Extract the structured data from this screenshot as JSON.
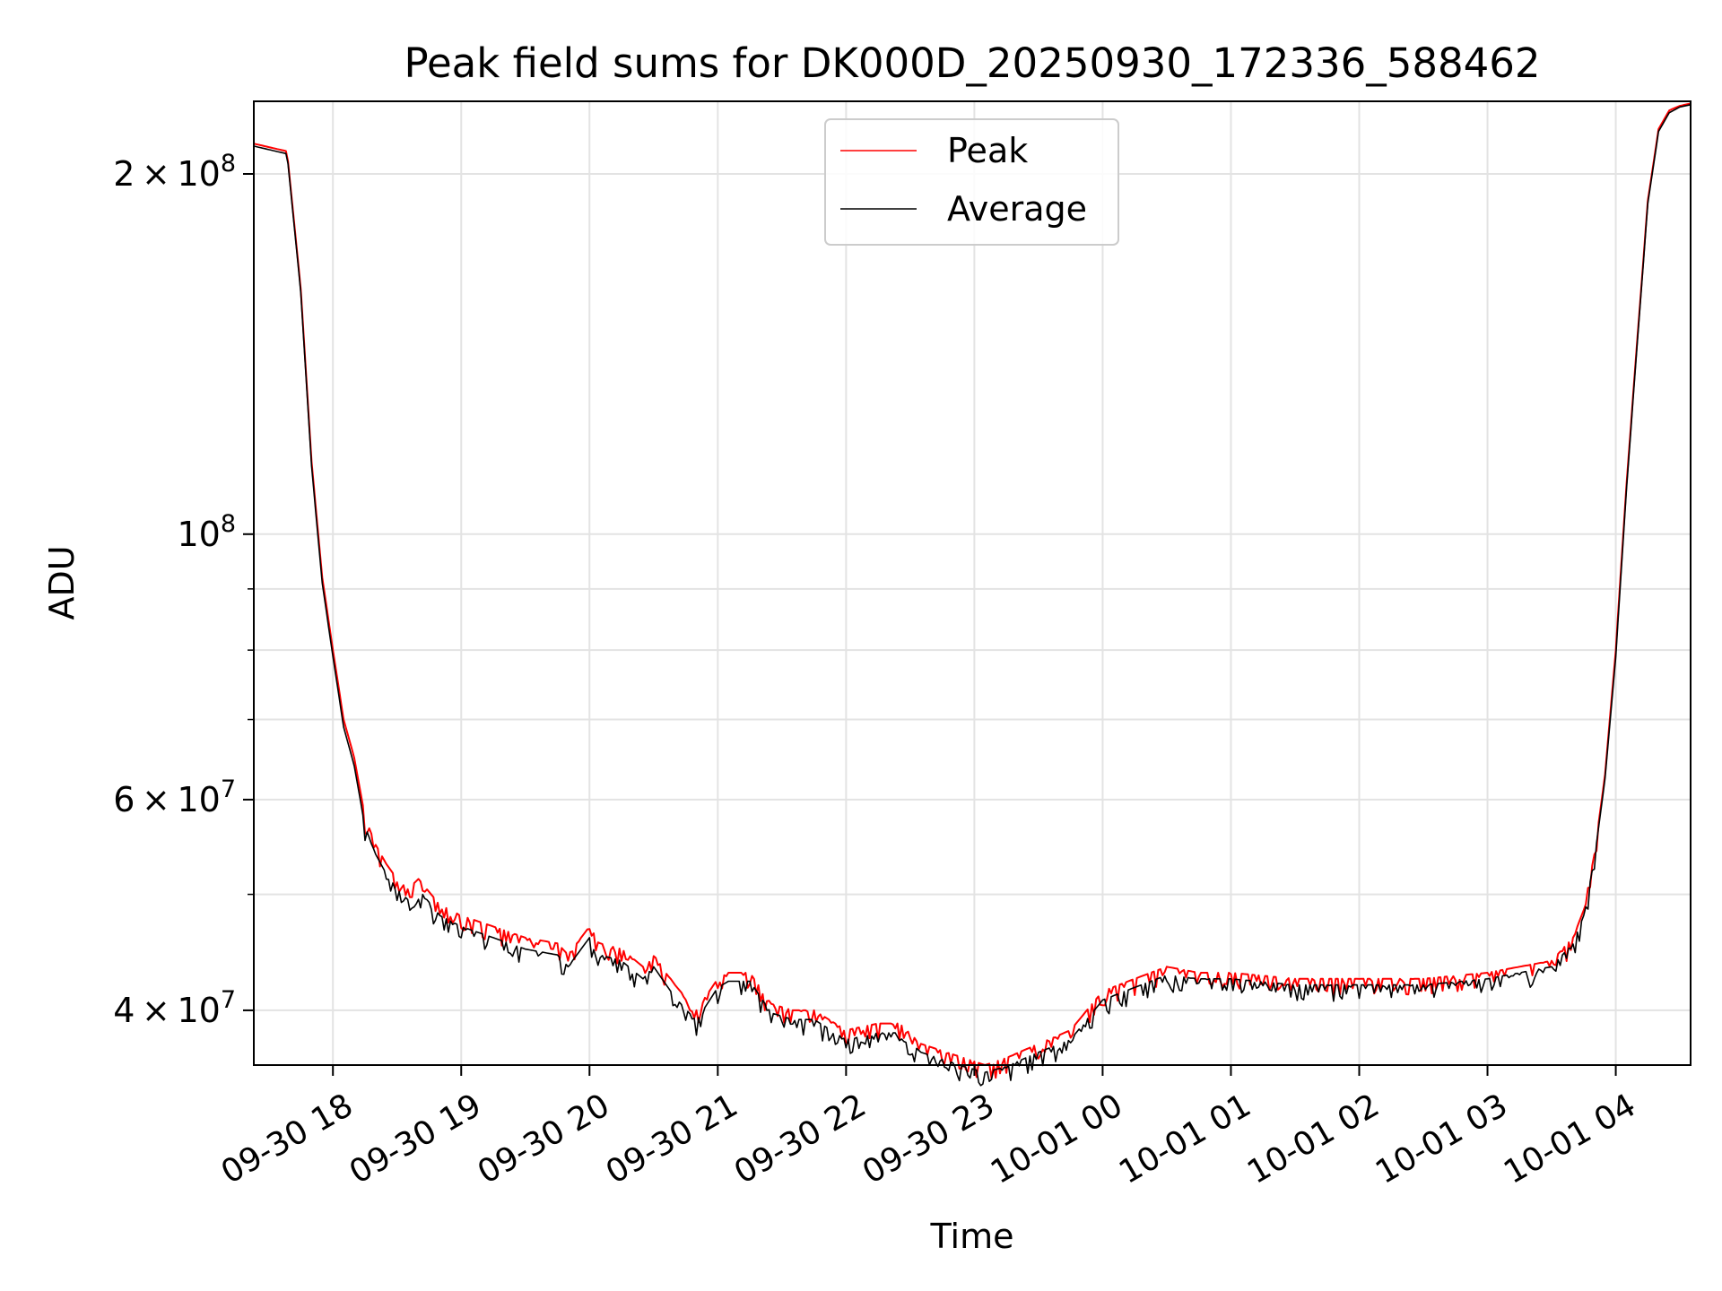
{
  "chart_data": {
    "type": "line",
    "title": "Peak field sums for DK000D_20250930_172336_588462",
    "xlabel": "Time",
    "ylabel": "ADU",
    "yscale": "log",
    "xlim": [
      "2025-09-30 17:23",
      "2025-10-01 04:35"
    ],
    "ylim": [
      36000000,
      230000000
    ],
    "grid": true,
    "legend_position": "upper center",
    "x_ticks": [
      {
        "value": "2025-09-30 18:00",
        "label": "09-30 18"
      },
      {
        "value": "2025-09-30 19:00",
        "label": "09-30 19"
      },
      {
        "value": "2025-09-30 20:00",
        "label": "09-30 20"
      },
      {
        "value": "2025-09-30 21:00",
        "label": "09-30 21"
      },
      {
        "value": "2025-09-30 22:00",
        "label": "09-30 22"
      },
      {
        "value": "2025-09-30 23:00",
        "label": "09-30 23"
      },
      {
        "value": "2025-10-01 00:00",
        "label": "10-01 00"
      },
      {
        "value": "2025-10-01 01:00",
        "label": "10-01 01"
      },
      {
        "value": "2025-10-01 02:00",
        "label": "10-01 02"
      },
      {
        "value": "2025-10-01 03:00",
        "label": "10-01 03"
      },
      {
        "value": "2025-10-01 04:00",
        "label": "10-01 04"
      }
    ],
    "y_major_ticks": [
      {
        "value": 40000000,
        "mant": "4",
        "exp": "7"
      },
      {
        "value": 60000000,
        "mant": "6",
        "exp": "7"
      },
      {
        "value": 100000000,
        "mant": "",
        "exp": "8"
      },
      {
        "value": 200000000,
        "mant": "2",
        "exp": "8"
      }
    ],
    "y_minor_gridlines": [
      50000000,
      70000000,
      80000000,
      90000000
    ],
    "series": [
      {
        "name": "Peak",
        "color": "#ff0000",
        "x": [
          "2025-09-30 17:23",
          "2025-09-30 17:38",
          "2025-09-30 17:39",
          "2025-09-30 17:45",
          "2025-09-30 17:50",
          "2025-09-30 17:55",
          "2025-09-30 18:00",
          "2025-09-30 18:05",
          "2025-09-30 18:10",
          "2025-09-30 18:15",
          "2025-09-30 18:20",
          "2025-09-30 18:25",
          "2025-09-30 18:30",
          "2025-09-30 18:35",
          "2025-09-30 18:40",
          "2025-09-30 18:50",
          "2025-09-30 19:00",
          "2025-09-30 19:15",
          "2025-09-30 19:30",
          "2025-09-30 19:45",
          "2025-09-30 19:50",
          "2025-09-30 20:00",
          "2025-09-30 20:05",
          "2025-09-30 20:15",
          "2025-09-30 20:25",
          "2025-09-30 20:30",
          "2025-09-30 20:40",
          "2025-09-30 20:50",
          "2025-09-30 21:00",
          "2025-09-30 21:05",
          "2025-09-30 21:15",
          "2025-09-30 21:25",
          "2025-09-30 21:35",
          "2025-09-30 21:45",
          "2025-09-30 22:00",
          "2025-09-30 22:15",
          "2025-09-30 22:25",
          "2025-09-30 22:35",
          "2025-09-30 22:45",
          "2025-09-30 22:55",
          "2025-09-30 23:05",
          "2025-09-30 23:15",
          "2025-09-30 23:30",
          "2025-09-30 23:45",
          "2025-10-01 00:00",
          "2025-10-01 00:15",
          "2025-10-01 00:30",
          "2025-10-01 00:45",
          "2025-10-01 01:00",
          "2025-10-01 01:30",
          "2025-10-01 02:00",
          "2025-10-01 02:30",
          "2025-10-01 03:00",
          "2025-10-01 03:15",
          "2025-10-01 03:30",
          "2025-10-01 03:40",
          "2025-10-01 03:45",
          "2025-10-01 03:50",
          "2025-10-01 03:55",
          "2025-10-01 04:00",
          "2025-10-01 04:05",
          "2025-10-01 04:10",
          "2025-10-01 04:15",
          "2025-10-01 04:20",
          "2025-10-01 04:25",
          "2025-10-01 04:30",
          "2025-10-01 04:35"
        ],
        "y": [
          212000000,
          209000000,
          205000000,
          160000000,
          115000000,
          92000000,
          80000000,
          70000000,
          65000000,
          58000000,
          55000000,
          53000000,
          51500000,
          50500000,
          51500000,
          49000000,
          48000000,
          47000000,
          46000000,
          45500000,
          44500000,
          47000000,
          45500000,
          45000000,
          43500000,
          44500000,
          42000000,
          40000000,
          42500000,
          43000000,
          43000000,
          40500000,
          40000000,
          40000000,
          38500000,
          39000000,
          39000000,
          37500000,
          37000000,
          36500000,
          36000000,
          36500000,
          37500000,
          38500000,
          41500000,
          42500000,
          43500000,
          43000000,
          43000000,
          42500000,
          42500000,
          42500000,
          43000000,
          43500000,
          44000000,
          46000000,
          48500000,
          54000000,
          63000000,
          80000000,
          110000000,
          145000000,
          190000000,
          218000000,
          226000000,
          228000000,
          229000000
        ]
      },
      {
        "name": "Average",
        "color": "#000000",
        "x": [
          "2025-09-30 17:23",
          "2025-09-30 17:38",
          "2025-09-30 17:39",
          "2025-09-30 17:45",
          "2025-09-30 17:50",
          "2025-09-30 17:55",
          "2025-09-30 18:00",
          "2025-09-30 18:05",
          "2025-09-30 18:10",
          "2025-09-30 18:15",
          "2025-09-30 18:20",
          "2025-09-30 18:25",
          "2025-09-30 18:30",
          "2025-09-30 18:35",
          "2025-09-30 18:40",
          "2025-09-30 18:50",
          "2025-09-30 19:00",
          "2025-09-30 19:15",
          "2025-09-30 19:30",
          "2025-09-30 19:45",
          "2025-09-30 19:50",
          "2025-09-30 20:00",
          "2025-09-30 20:05",
          "2025-09-30 20:15",
          "2025-09-30 20:25",
          "2025-09-30 20:30",
          "2025-09-30 20:40",
          "2025-09-30 20:50",
          "2025-09-30 21:00",
          "2025-09-30 21:05",
          "2025-09-30 21:15",
          "2025-09-30 21:25",
          "2025-09-30 21:35",
          "2025-09-30 21:45",
          "2025-09-30 22:00",
          "2025-09-30 22:15",
          "2025-09-30 22:25",
          "2025-09-30 22:35",
          "2025-09-30 22:45",
          "2025-09-30 22:55",
          "2025-09-30 23:05",
          "2025-09-30 23:15",
          "2025-09-30 23:30",
          "2025-09-30 23:45",
          "2025-10-01 00:00",
          "2025-10-01 00:15",
          "2025-10-01 00:30",
          "2025-10-01 00:45",
          "2025-10-01 01:00",
          "2025-10-01 01:30",
          "2025-10-01 02:00",
          "2025-10-01 02:30",
          "2025-10-01 03:00",
          "2025-10-01 03:15",
          "2025-10-01 03:30",
          "2025-10-01 03:40",
          "2025-10-01 03:45",
          "2025-10-01 03:50",
          "2025-10-01 03:55",
          "2025-10-01 04:00",
          "2025-10-01 04:05",
          "2025-10-01 04:10",
          "2025-10-01 04:15",
          "2025-10-01 04:20",
          "2025-10-01 04:25",
          "2025-10-01 04:30",
          "2025-10-01 04:35"
        ],
        "y": [
          211000000,
          208000000,
          204000000,
          159000000,
          114000000,
          91000000,
          79000000,
          69000000,
          64000000,
          57000000,
          54000000,
          52000000,
          50500000,
          49500000,
          50500000,
          48000000,
          47000000,
          46000000,
          45000000,
          44500000,
          43500000,
          46000000,
          44500000,
          44000000,
          42500000,
          43500000,
          41000000,
          39200000,
          41800000,
          42300000,
          42300000,
          39800000,
          39300000,
          39300000,
          37800000,
          38300000,
          38300000,
          36900000,
          36400000,
          35900000,
          35500000,
          35900000,
          36900000,
          37800000,
          40800000,
          41800000,
          42800000,
          42500000,
          42500000,
          42000000,
          42000000,
          42000000,
          42500000,
          43000000,
          43500000,
          45500000,
          48000000,
          53500000,
          62500000,
          79000000,
          109000000,
          144000000,
          189000000,
          217000000,
          225000000,
          227500000,
          228500000
        ]
      }
    ]
  }
}
